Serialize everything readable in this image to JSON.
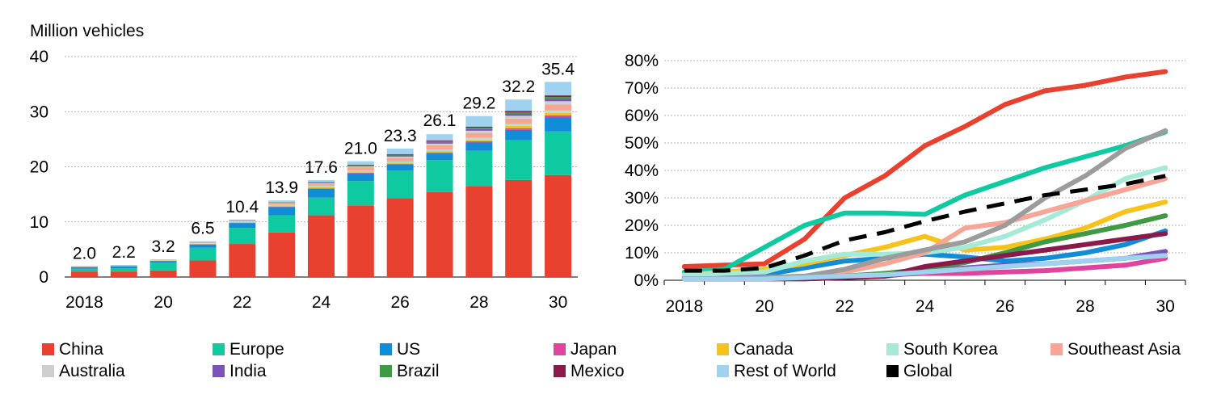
{
  "chart_data": [
    {
      "type": "bar",
      "stacked": true,
      "ylabel": "Million vehicles",
      "ylim": [
        0,
        40
      ],
      "yticks": [
        0,
        10,
        20,
        30,
        40
      ],
      "grid": true,
      "x": [
        2018,
        2019,
        2020,
        2021,
        2022,
        2023,
        2024,
        2025,
        2026,
        2027,
        2028,
        2029,
        2030
      ],
      "x_tick_labels": [
        "2018",
        "",
        "20",
        "",
        "22",
        "",
        "24",
        "",
        "26",
        "",
        "28",
        "",
        "30"
      ],
      "totals": [
        2.0,
        2.2,
        3.2,
        6.5,
        10.4,
        13.9,
        17.6,
        21.0,
        23.3,
        26.1,
        29.2,
        32.2,
        35.4
      ],
      "total_labels": [
        "2.0",
        "2.2",
        "3.2",
        "6.5",
        "10.4",
        "13.9",
        "17.6",
        "21.0",
        "23.3",
        "26.1",
        "29.2",
        "32.2",
        "35.4"
      ],
      "series": [
        {
          "name": "China",
          "color": "#e8412f",
          "values": [
            1.0,
            1.0,
            1.2,
            3.0,
            6.0,
            8.1,
            11.2,
            13.0,
            14.3,
            15.4,
            16.5,
            17.6,
            18.5
          ]
        },
        {
          "name": "Europe",
          "color": "#0fc9a0",
          "values": [
            0.5,
            0.6,
            1.4,
            2.3,
            2.9,
            3.1,
            3.2,
            4.4,
            5.0,
            5.8,
            6.4,
            7.2,
            7.9
          ]
        },
        {
          "name": "US",
          "color": "#118dd7",
          "values": [
            0.3,
            0.35,
            0.3,
            0.6,
            0.9,
            1.5,
            1.6,
            1.4,
            1.1,
            1.2,
            1.5,
            1.9,
            2.6
          ]
        },
        {
          "name": "Japan",
          "color": "#e0449e",
          "values": [
            0.03,
            0.03,
            0.03,
            0.04,
            0.05,
            0.08,
            0.1,
            0.12,
            0.15,
            0.2,
            0.24,
            0.3,
            0.35
          ]
        },
        {
          "name": "Canada",
          "color": "#f7c21a",
          "values": [
            0.04,
            0.05,
            0.05,
            0.1,
            0.15,
            0.2,
            0.3,
            0.2,
            0.2,
            0.25,
            0.3,
            0.4,
            0.45
          ]
        },
        {
          "name": "South Korea",
          "color": "#a4ead7",
          "values": [
            0.03,
            0.04,
            0.04,
            0.1,
            0.15,
            0.15,
            0.15,
            0.2,
            0.2,
            0.25,
            0.3,
            0.35,
            0.4
          ]
        },
        {
          "name": "Southeast Asia",
          "color": "#f7a597",
          "values": [
            0.01,
            0.01,
            0.02,
            0.03,
            0.1,
            0.2,
            0.35,
            0.6,
            0.7,
            0.8,
            0.9,
            1.0,
            1.1
          ]
        },
        {
          "name": "Australia",
          "color": "#cfcfcf",
          "values": [
            0.02,
            0.02,
            0.02,
            0.03,
            0.04,
            0.1,
            0.1,
            0.15,
            0.2,
            0.3,
            0.4,
            0.5,
            0.6
          ]
        },
        {
          "name": "India",
          "color": "#7b52b9",
          "values": [
            0.01,
            0.01,
            0.01,
            0.02,
            0.05,
            0.08,
            0.1,
            0.15,
            0.2,
            0.25,
            0.3,
            0.35,
            0.4
          ]
        },
        {
          "name": "Brazil",
          "color": "#3f9a43",
          "values": [
            0.01,
            0.01,
            0.01,
            0.02,
            0.03,
            0.05,
            0.07,
            0.1,
            0.15,
            0.2,
            0.25,
            0.3,
            0.35
          ]
        },
        {
          "name": "Mexico",
          "color": "#8a1a4a",
          "values": [
            0.01,
            0.01,
            0.01,
            0.02,
            0.02,
            0.03,
            0.05,
            0.08,
            0.1,
            0.15,
            0.2,
            0.25,
            0.3
          ]
        },
        {
          "name": "Rest of World",
          "color": "#9fd2ee",
          "values": [
            0.04,
            0.07,
            0.11,
            0.24,
            0.01,
            0.31,
            0.38,
            0.6,
            1.0,
            1.1,
            1.91,
            2.05,
            2.45
          ]
        }
      ]
    },
    {
      "type": "line",
      "ylim": [
        0,
        80
      ],
      "yticks": [
        0,
        10,
        20,
        30,
        40,
        50,
        60,
        70,
        80
      ],
      "ytick_labels": [
        "0%",
        "10%",
        "20%",
        "30%",
        "40%",
        "50%",
        "60%",
        "70%",
        "80%"
      ],
      "grid": true,
      "x": [
        2018,
        2019,
        2020,
        2021,
        2022,
        2023,
        2024,
        2025,
        2026,
        2027,
        2028,
        2029,
        2030
      ],
      "x_tick_labels": [
        "2018",
        "",
        "20",
        "",
        "22",
        "",
        "24",
        "",
        "26",
        "",
        "28",
        "",
        "30"
      ],
      "series": [
        {
          "name": "China",
          "color": "#e8412f",
          "values": [
            5,
            5.5,
            6,
            15,
            30,
            38,
            49,
            56,
            64,
            69,
            71,
            74,
            76
          ]
        },
        {
          "name": "Europe",
          "color": "#0fc9a0",
          "values": [
            3,
            4,
            12,
            20,
            24.5,
            24.5,
            24,
            31,
            36,
            41,
            45,
            49,
            54
          ]
        },
        {
          "name": "US",
          "color": "#118dd7",
          "values": [
            1.5,
            1.5,
            2,
            4.5,
            7,
            8,
            9.5,
            8.5,
            7,
            8,
            10,
            13,
            18
          ]
        },
        {
          "name": "Japan",
          "color": "#e0449e",
          "values": [
            1,
            1,
            1,
            1,
            1.5,
            2,
            2.5,
            2.5,
            3,
            3.5,
            4.5,
            5.5,
            8
          ]
        },
        {
          "name": "Canada",
          "color": "#f7c21a",
          "values": [
            2,
            3,
            4,
            6,
            9,
            12,
            16,
            11,
            12,
            15,
            19,
            25,
            28.5
          ]
        },
        {
          "name": "South Korea",
          "color": "#a4ead7",
          "values": [
            2,
            2.5,
            3,
            7,
            9.5,
            9.5,
            10,
            12,
            16,
            22,
            29,
            37,
            41
          ]
        },
        {
          "name": "Southeast Asia",
          "color": "#f7a597",
          "values": [
            0.5,
            0.5,
            1,
            1.5,
            3,
            6,
            10,
            19,
            21,
            25,
            29,
            33,
            37
          ]
        },
        {
          "name": "Australia",
          "color": "#9c9c9c",
          "values": [
            0.5,
            0.5,
            1,
            1.5,
            4,
            8,
            11,
            14,
            20,
            30,
            38,
            48,
            54.5
          ]
        },
        {
          "name": "India",
          "color": "#7b52b9",
          "values": [
            0.5,
            0.5,
            0.5,
            0.5,
            1,
            1.5,
            3,
            4.5,
            5.5,
            6,
            7,
            8,
            10.5
          ]
        },
        {
          "name": "Brazil",
          "color": "#3f9a43",
          "values": [
            0.5,
            0.5,
            0.5,
            1,
            1.5,
            2.5,
            4,
            6.5,
            10,
            14,
            17,
            20,
            23.5
          ]
        },
        {
          "name": "Mexico",
          "color": "#8a1a4a",
          "values": [
            0.5,
            0.5,
            0.5,
            0.5,
            1,
            1.5,
            5,
            7,
            9,
            11,
            13,
            15,
            17
          ]
        },
        {
          "name": "Rest of World",
          "color": "#9fd2ee",
          "values": [
            0.5,
            0.5,
            0.5,
            1,
            1.5,
            2,
            3,
            4,
            5,
            6,
            7,
            8,
            9
          ]
        },
        {
          "name": "Global",
          "color": "#000000",
          "dashed": true,
          "values": [
            3.5,
            3.5,
            4.5,
            9,
            14.5,
            17.5,
            21.5,
            25,
            28,
            31,
            33,
            35,
            38
          ]
        }
      ]
    }
  ],
  "legend": {
    "rows": [
      [
        {
          "label": "China",
          "color": "#e8412f"
        },
        {
          "label": "Europe",
          "color": "#0fc9a0"
        },
        {
          "label": "US",
          "color": "#118dd7"
        },
        {
          "label": "Japan",
          "color": "#e0449e"
        },
        {
          "label": "Canada",
          "color": "#f7c21a"
        },
        {
          "label": "South Korea",
          "color": "#a4ead7"
        },
        {
          "label": "Southeast Asia",
          "color": "#f7a597"
        }
      ],
      [
        {
          "label": "Australia",
          "color": "#cfcfcf"
        },
        {
          "label": "India",
          "color": "#7b52b9"
        },
        {
          "label": "Brazil",
          "color": "#3f9a43"
        },
        {
          "label": "Mexico",
          "color": "#8a1a4a"
        },
        {
          "label": "Rest of World",
          "color": "#9fd2ee"
        },
        {
          "label": "Global",
          "color": "#000000"
        }
      ]
    ]
  }
}
